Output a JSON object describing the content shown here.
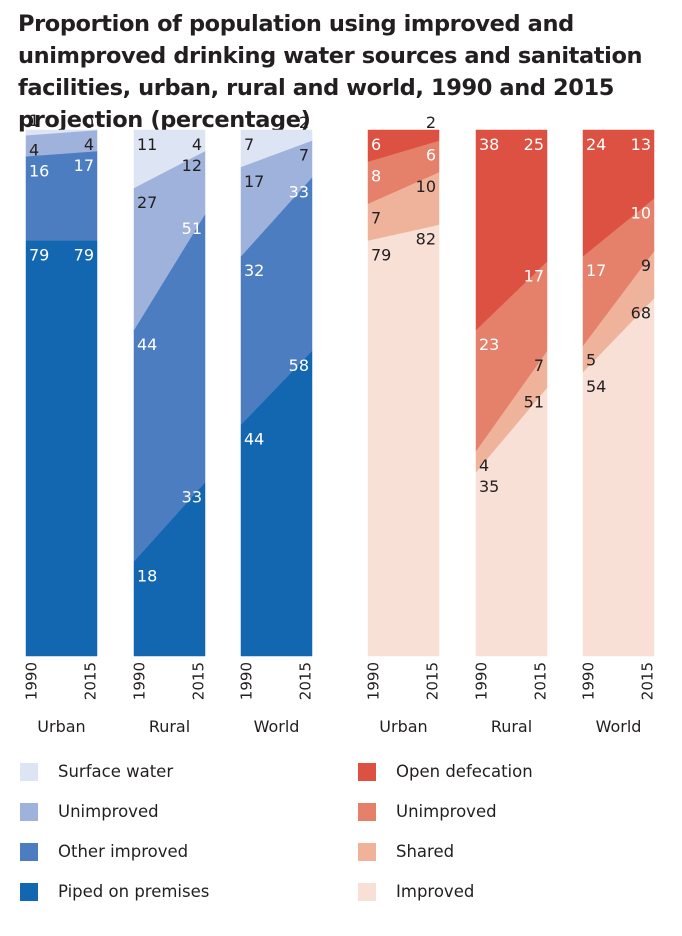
{
  "title": "Proportion of population using improved and unimproved drinking water sources and sanitation facilities, urban, rural and world, 1990 and 2015 projection (percentage)",
  "chart_data": [
    {
      "type": "area",
      "subject": "drinking water",
      "years": [
        "1990",
        "2015"
      ],
      "groups": [
        {
          "label": "Urban",
          "values": {
            "Piped on premises": [
              79,
              79
            ],
            "Other improved": [
              16,
              17
            ],
            "Unimproved": [
              4,
              4
            ],
            "Surface water": [
              1,
              0
            ]
          }
        },
        {
          "label": "Rural",
          "values": {
            "Piped on premises": [
              18,
              33
            ],
            "Other improved": [
              44,
              51
            ],
            "Unimproved": [
              27,
              12
            ],
            "Surface water": [
              11,
              4
            ]
          }
        },
        {
          "label": "World",
          "values": {
            "Piped on premises": [
              44,
              58
            ],
            "Other improved": [
              32,
              33
            ],
            "Unimproved": [
              17,
              7
            ],
            "Surface water": [
              7,
              2
            ]
          }
        }
      ],
      "series": [
        {
          "name": "Piped on premises",
          "color": "#1367b1"
        },
        {
          "name": "Other improved",
          "color": "#4b7dc0"
        },
        {
          "name": "Unimproved",
          "color": "#9fb2dc"
        },
        {
          "name": "Surface water",
          "color": "#dde4f3"
        }
      ],
      "ylim": [
        0,
        100
      ]
    },
    {
      "type": "area",
      "subject": "sanitation",
      "years": [
        "1990",
        "2015"
      ],
      "groups": [
        {
          "label": "Urban",
          "values": {
            "Improved": [
              79,
              82
            ],
            "Shared": [
              7,
              10
            ],
            "Unimproved": [
              8,
              6
            ],
            "Open defecation": [
              6,
              2
            ]
          }
        },
        {
          "label": "Rural",
          "values": {
            "Improved": [
              35,
              51
            ],
            "Shared": [
              4,
              7
            ],
            "Unimproved": [
              23,
              17
            ],
            "Open defecation": [
              38,
              25
            ]
          }
        },
        {
          "label": "World",
          "values": {
            "Improved": [
              54,
              68
            ],
            "Shared": [
              5,
              9
            ],
            "Unimproved": [
              17,
              10
            ],
            "Open defecation": [
              24,
              13
            ]
          }
        }
      ],
      "series": [
        {
          "name": "Improved",
          "color": "#f8e0d6"
        },
        {
          "name": "Shared",
          "color": "#efb39b"
        },
        {
          "name": "Unimproved",
          "color": "#e5806a"
        },
        {
          "name": "Open defecation",
          "color": "#dc5142"
        }
      ],
      "ylim": [
        0,
        100
      ]
    }
  ],
  "legend_left": [
    {
      "label": "Surface water",
      "color": "#dde4f3"
    },
    {
      "label": "Unimproved",
      "color": "#9fb2dc"
    },
    {
      "label": "Other improved",
      "color": "#4b7dc0"
    },
    {
      "label": "Piped on premises",
      "color": "#1367b1"
    }
  ],
  "legend_right": [
    {
      "label": "Open defecation",
      "color": "#dc5142"
    },
    {
      "label": "Unimproved",
      "color": "#e5806a"
    },
    {
      "label": "Shared",
      "color": "#efb39b"
    },
    {
      "label": "Improved",
      "color": "#f8e0d6"
    }
  ]
}
